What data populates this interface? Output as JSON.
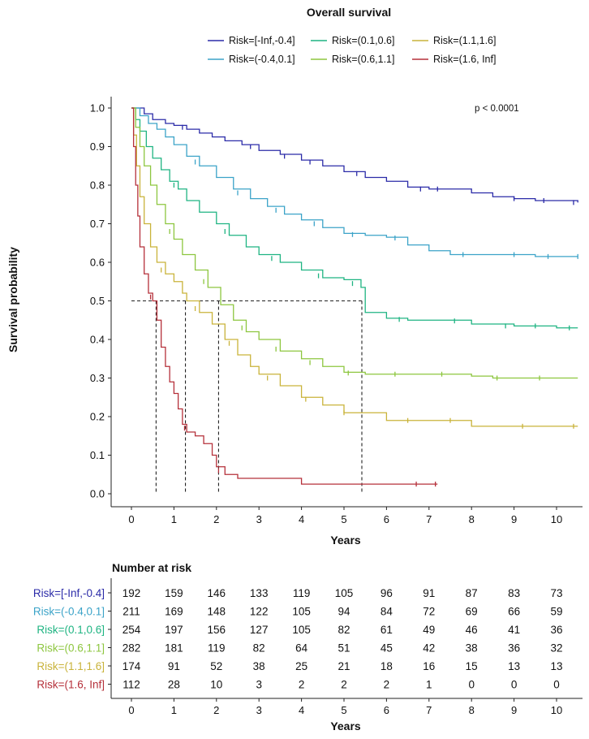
{
  "chart_data": {
    "type": "line",
    "subtype": "kaplan-meier",
    "title": "Overall survival",
    "xlabel": "Years",
    "ylabel": "Survival probability",
    "xlim": [
      -0.3,
      10.5
    ],
    "ylim": [
      -0.05,
      1.05
    ],
    "xticks": [
      0,
      1,
      2,
      3,
      4,
      5,
      6,
      7,
      8,
      9,
      10
    ],
    "yticks": [
      0.0,
      0.1,
      0.2,
      0.3,
      0.4,
      0.5,
      0.6,
      0.7,
      0.8,
      0.9,
      1.0
    ],
    "ytick_labels": [
      "0.0",
      "0.1",
      "0.2",
      "0.3",
      "0.4",
      "0.5",
      "0.6",
      "0.7",
      "0.8",
      "0.9",
      "1.0"
    ],
    "legend_position": "top",
    "annotation": "p < 0.0001",
    "median_line": {
      "y": 0.5,
      "x_medians": [
        0.58,
        1.27,
        2.05,
        5.42
      ]
    },
    "series": [
      {
        "name": "Risk=[-Inf,-0.4]",
        "color": "#2B2BA8",
        "points": [
          [
            0,
            1.0
          ],
          [
            0.3,
            0.985
          ],
          [
            0.5,
            0.97
          ],
          [
            0.8,
            0.96
          ],
          [
            1.0,
            0.955
          ],
          [
            1.3,
            0.945
          ],
          [
            1.6,
            0.935
          ],
          [
            1.9,
            0.925
          ],
          [
            2.2,
            0.915
          ],
          [
            2.6,
            0.905
          ],
          [
            3.0,
            0.89
          ],
          [
            3.5,
            0.88
          ],
          [
            4.0,
            0.865
          ],
          [
            4.5,
            0.85
          ],
          [
            5.0,
            0.835
          ],
          [
            5.5,
            0.82
          ],
          [
            6.0,
            0.81
          ],
          [
            6.5,
            0.795
          ],
          [
            7.0,
            0.79
          ],
          [
            7.5,
            0.79
          ],
          [
            8.0,
            0.78
          ],
          [
            8.5,
            0.77
          ],
          [
            9.0,
            0.765
          ],
          [
            9.5,
            0.76
          ],
          [
            10.0,
            0.76
          ],
          [
            10.5,
            0.755
          ]
        ],
        "censor": [
          [
            1.2,
            0.95
          ],
          [
            2.8,
            0.9
          ],
          [
            3.6,
            0.875
          ],
          [
            4.2,
            0.86
          ],
          [
            5.3,
            0.83
          ],
          [
            6.8,
            0.79
          ],
          [
            7.2,
            0.79
          ],
          [
            9.0,
            0.765
          ],
          [
            9.7,
            0.76
          ],
          [
            10.4,
            0.755
          ]
        ]
      },
      {
        "name": "Risk=(-0.4,0.1]",
        "color": "#3BA3C8",
        "points": [
          [
            0,
            1.0
          ],
          [
            0.2,
            0.98
          ],
          [
            0.4,
            0.96
          ],
          [
            0.6,
            0.945
          ],
          [
            0.8,
            0.925
          ],
          [
            1.0,
            0.905
          ],
          [
            1.3,
            0.875
          ],
          [
            1.6,
            0.85
          ],
          [
            2.0,
            0.82
          ],
          [
            2.4,
            0.79
          ],
          [
            2.8,
            0.765
          ],
          [
            3.2,
            0.745
          ],
          [
            3.6,
            0.725
          ],
          [
            4.0,
            0.71
          ],
          [
            4.5,
            0.69
          ],
          [
            5.0,
            0.675
          ],
          [
            5.5,
            0.67
          ],
          [
            6.0,
            0.665
          ],
          [
            6.5,
            0.645
          ],
          [
            7.0,
            0.63
          ],
          [
            7.5,
            0.62
          ],
          [
            8.0,
            0.62
          ],
          [
            9.0,
            0.62
          ],
          [
            9.5,
            0.615
          ],
          [
            10.0,
            0.615
          ],
          [
            10.5,
            0.615
          ]
        ],
        "censor": [
          [
            1.5,
            0.86
          ],
          [
            2.5,
            0.78
          ],
          [
            3.4,
            0.735
          ],
          [
            4.3,
            0.7
          ],
          [
            5.2,
            0.672
          ],
          [
            6.2,
            0.663
          ],
          [
            7.8,
            0.62
          ],
          [
            9.0,
            0.62
          ],
          [
            9.8,
            0.615
          ],
          [
            10.5,
            0.615
          ]
        ]
      },
      {
        "name": "Risk=(0.1,0.6]",
        "color": "#1FB482",
        "points": [
          [
            0,
            1.0
          ],
          [
            0.1,
            0.97
          ],
          [
            0.2,
            0.94
          ],
          [
            0.35,
            0.9
          ],
          [
            0.5,
            0.87
          ],
          [
            0.7,
            0.84
          ],
          [
            0.9,
            0.81
          ],
          [
            1.1,
            0.79
          ],
          [
            1.3,
            0.76
          ],
          [
            1.6,
            0.73
          ],
          [
            2.0,
            0.7
          ],
          [
            2.3,
            0.67
          ],
          [
            2.7,
            0.64
          ],
          [
            3.0,
            0.62
          ],
          [
            3.5,
            0.6
          ],
          [
            4.0,
            0.58
          ],
          [
            4.5,
            0.56
          ],
          [
            5.0,
            0.555
          ],
          [
            5.4,
            0.535
          ],
          [
            5.5,
            0.47
          ],
          [
            6.0,
            0.455
          ],
          [
            6.5,
            0.45
          ],
          [
            7.0,
            0.45
          ],
          [
            8.0,
            0.44
          ],
          [
            9.0,
            0.435
          ],
          [
            10.0,
            0.43
          ],
          [
            10.5,
            0.43
          ]
        ],
        "censor": [
          [
            1.0,
            0.8
          ],
          [
            2.2,
            0.68
          ],
          [
            3.3,
            0.61
          ],
          [
            4.4,
            0.565
          ],
          [
            5.2,
            0.545
          ],
          [
            6.3,
            0.452
          ],
          [
            7.6,
            0.448
          ],
          [
            8.8,
            0.435
          ],
          [
            9.5,
            0.435
          ],
          [
            10.3,
            0.43
          ]
        ]
      },
      {
        "name": "Risk=(0.6,1.1]",
        "color": "#8DC63F",
        "points": [
          [
            0,
            1.0
          ],
          [
            0.1,
            0.95
          ],
          [
            0.2,
            0.9
          ],
          [
            0.3,
            0.85
          ],
          [
            0.45,
            0.8
          ],
          [
            0.6,
            0.75
          ],
          [
            0.8,
            0.7
          ],
          [
            1.0,
            0.66
          ],
          [
            1.2,
            0.62
          ],
          [
            1.5,
            0.58
          ],
          [
            1.8,
            0.535
          ],
          [
            2.1,
            0.49
          ],
          [
            2.4,
            0.45
          ],
          [
            2.7,
            0.42
          ],
          [
            3.0,
            0.4
          ],
          [
            3.5,
            0.37
          ],
          [
            4.0,
            0.35
          ],
          [
            4.5,
            0.33
          ],
          [
            5.0,
            0.315
          ],
          [
            5.5,
            0.31
          ],
          [
            6.0,
            0.31
          ],
          [
            7.0,
            0.31
          ],
          [
            8.0,
            0.305
          ],
          [
            8.5,
            0.3
          ],
          [
            9.0,
            0.3
          ],
          [
            10.0,
            0.3
          ],
          [
            10.5,
            0.3
          ]
        ],
        "censor": [
          [
            0.9,
            0.68
          ],
          [
            1.7,
            0.55
          ],
          [
            2.6,
            0.43
          ],
          [
            3.4,
            0.375
          ],
          [
            4.2,
            0.34
          ],
          [
            5.1,
            0.313
          ],
          [
            6.2,
            0.31
          ],
          [
            7.3,
            0.31
          ],
          [
            8.6,
            0.3
          ],
          [
            9.6,
            0.3
          ]
        ]
      },
      {
        "name": "Risk=(1.1,1.6]",
        "color": "#C9B33A",
        "points": [
          [
            0,
            1.0
          ],
          [
            0.05,
            0.93
          ],
          [
            0.12,
            0.85
          ],
          [
            0.2,
            0.77
          ],
          [
            0.3,
            0.7
          ],
          [
            0.45,
            0.64
          ],
          [
            0.6,
            0.6
          ],
          [
            0.8,
            0.57
          ],
          [
            1.0,
            0.55
          ],
          [
            1.2,
            0.52
          ],
          [
            1.3,
            0.5
          ],
          [
            1.6,
            0.47
          ],
          [
            1.9,
            0.44
          ],
          [
            2.2,
            0.4
          ],
          [
            2.5,
            0.36
          ],
          [
            2.8,
            0.33
          ],
          [
            3.0,
            0.31
          ],
          [
            3.5,
            0.28
          ],
          [
            4.0,
            0.25
          ],
          [
            4.5,
            0.23
          ],
          [
            5.0,
            0.21
          ],
          [
            5.5,
            0.21
          ],
          [
            6.0,
            0.19
          ],
          [
            7.0,
            0.19
          ],
          [
            8.0,
            0.175
          ],
          [
            9.0,
            0.175
          ],
          [
            10.0,
            0.175
          ],
          [
            10.5,
            0.175
          ]
        ],
        "censor": [
          [
            0.7,
            0.58
          ],
          [
            1.5,
            0.48
          ],
          [
            2.3,
            0.39
          ],
          [
            3.2,
            0.3
          ],
          [
            4.1,
            0.245
          ],
          [
            5.0,
            0.21
          ],
          [
            6.5,
            0.19
          ],
          [
            7.5,
            0.19
          ],
          [
            9.2,
            0.175
          ],
          [
            10.4,
            0.175
          ]
        ]
      },
      {
        "name": "Risk=(1.6, Inf]",
        "color": "#B5303A",
        "points": [
          [
            0,
            1.0
          ],
          [
            0.05,
            0.9
          ],
          [
            0.1,
            0.8
          ],
          [
            0.15,
            0.72
          ],
          [
            0.2,
            0.64
          ],
          [
            0.3,
            0.57
          ],
          [
            0.4,
            0.52
          ],
          [
            0.5,
            0.5
          ],
          [
            0.6,
            0.45
          ],
          [
            0.7,
            0.38
          ],
          [
            0.8,
            0.33
          ],
          [
            0.9,
            0.29
          ],
          [
            1.0,
            0.26
          ],
          [
            1.1,
            0.22
          ],
          [
            1.2,
            0.18
          ],
          [
            1.3,
            0.16
          ],
          [
            1.5,
            0.15
          ],
          [
            1.7,
            0.13
          ],
          [
            1.9,
            0.1
          ],
          [
            2.0,
            0.07
          ],
          [
            2.2,
            0.05
          ],
          [
            2.5,
            0.04
          ],
          [
            3.0,
            0.04
          ],
          [
            3.5,
            0.04
          ],
          [
            4.0,
            0.025
          ],
          [
            5.0,
            0.025
          ],
          [
            6.0,
            0.025
          ],
          [
            7.0,
            0.025
          ],
          [
            7.2,
            0.025
          ]
        ],
        "censor": [
          [
            0.45,
            0.51
          ],
          [
            1.25,
            0.17
          ],
          [
            2.05,
            0.06
          ],
          [
            6.7,
            0.025
          ],
          [
            7.15,
            0.025
          ]
        ]
      }
    ]
  },
  "risk_table": {
    "title": "Number at risk",
    "xlabel": "Years",
    "xticks": [
      0,
      1,
      2,
      3,
      4,
      5,
      6,
      7,
      8,
      9,
      10
    ],
    "rows": [
      {
        "label": "Risk=[-Inf,-0.4]",
        "color": "#2B2BA8",
        "values": [
          192,
          159,
          146,
          133,
          119,
          105,
          96,
          91,
          87,
          83,
          73
        ]
      },
      {
        "label": "Risk=(-0.4,0.1]",
        "color": "#3BA3C8",
        "values": [
          211,
          169,
          148,
          122,
          105,
          94,
          84,
          72,
          69,
          66,
          59
        ]
      },
      {
        "label": "Risk=(0.1,0.6]",
        "color": "#1FB482",
        "values": [
          254,
          197,
          156,
          127,
          105,
          82,
          61,
          49,
          46,
          41,
          36
        ]
      },
      {
        "label": "Risk=(0.6,1.1]",
        "color": "#8DC63F",
        "values": [
          282,
          181,
          119,
          82,
          64,
          51,
          45,
          42,
          38,
          36,
          32
        ]
      },
      {
        "label": "Risk=(1.1,1.6]",
        "color": "#C9B33A",
        "values": [
          174,
          91,
          52,
          38,
          25,
          21,
          18,
          16,
          15,
          13,
          13
        ]
      },
      {
        "label": "Risk=(1.6, Inf]",
        "color": "#B5303A",
        "values": [
          112,
          28,
          10,
          3,
          2,
          2,
          2,
          1,
          0,
          0,
          0
        ]
      }
    ]
  }
}
